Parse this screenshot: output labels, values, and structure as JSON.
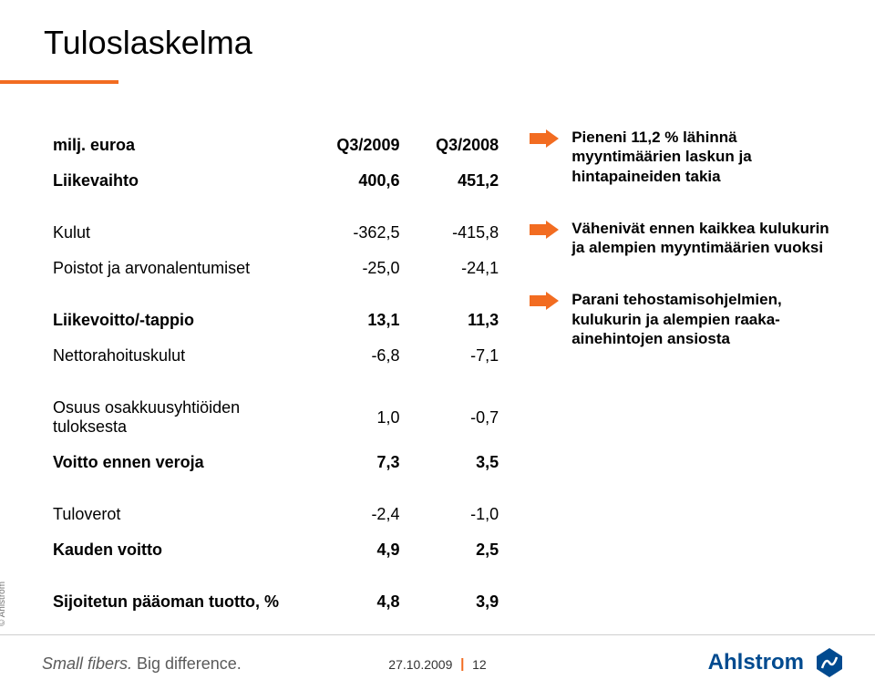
{
  "colors": {
    "accent": "#f26c21",
    "logo_blue": "#004a8f",
    "text": "#000000",
    "tagline_grey": "#5a5a5a",
    "footer_line": "#cfcfcf",
    "copyright_grey": "#777777"
  },
  "title": "Tuloslaskelma",
  "table": {
    "header": {
      "label": "milj. euroa",
      "col1": "Q3/2009",
      "col2": "Q3/2008"
    },
    "rows": [
      {
        "label": "Liikevaihto",
        "v1": "400,6",
        "v2": "451,2",
        "bold": true
      },
      {
        "spacer": true
      },
      {
        "label": "Kulut",
        "v1": "-362,5",
        "v2": "-415,8",
        "bold": false
      },
      {
        "label": "Poistot ja arvonalentumiset",
        "v1": "-25,0",
        "v2": "-24,1",
        "bold": false
      },
      {
        "spacer": true
      },
      {
        "label": "Liikevoitto/-tappio",
        "v1": "13,1",
        "v2": "11,3",
        "bold": true
      },
      {
        "label": "Nettorahoituskulut",
        "v1": "-6,8",
        "v2": "-7,1",
        "bold": false
      },
      {
        "spacer": true
      },
      {
        "label": "Osuus osakkuusyhtiöiden tuloksesta",
        "v1": "1,0",
        "v2": "-0,7",
        "bold": false
      },
      {
        "label": "Voitto ennen veroja",
        "v1": "7,3",
        "v2": "3,5",
        "bold": true
      },
      {
        "spacer": true
      },
      {
        "label": "Tuloverot",
        "v1": "-2,4",
        "v2": "-1,0",
        "bold": false
      },
      {
        "label": "Kauden voitto",
        "v1": "4,9",
        "v2": "2,5",
        "bold": true
      },
      {
        "spacer": true
      },
      {
        "label": "Sijoitetun pääoman tuotto, %",
        "v1": "4,8",
        "v2": "3,9",
        "bold": true
      }
    ]
  },
  "notes": [
    "Pieneni 11,2 % lähinnä myyntimäärien laskun ja hintapaineiden takia",
    "Vähenivät ennen kaikkea kulukurin ja alempien myyntimäärien vuoksi",
    "Parani tehostamisohjelmien, kulukurin ja alempien raaka-ainehintojen ansiosta"
  ],
  "footer": {
    "copyright": "© Ahlstrom",
    "tagline_italic": "Small fibers.",
    "tagline_rest": " Big difference.",
    "date": "27.10.2009",
    "page": "12",
    "logo_text": "Ahlstrom"
  }
}
